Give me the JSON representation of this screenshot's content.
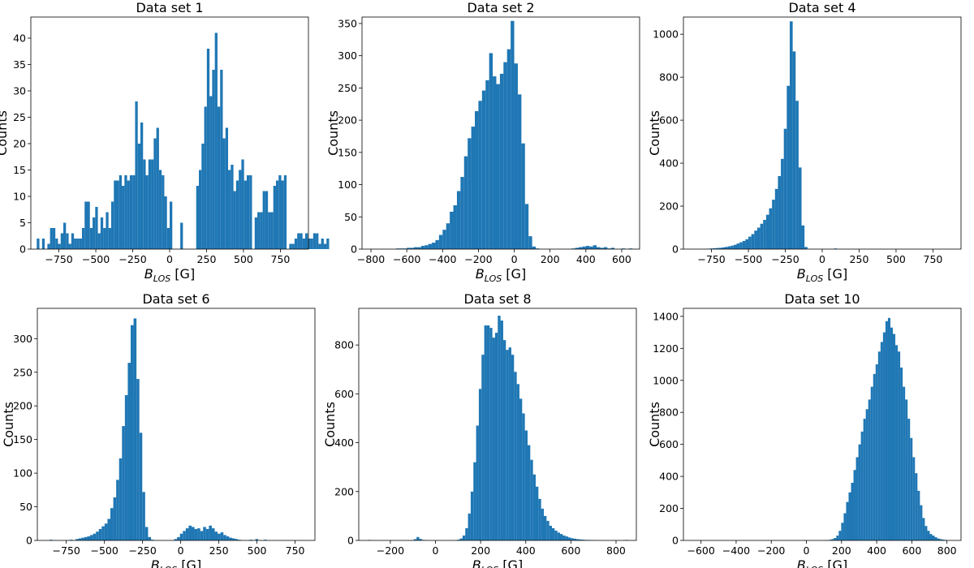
{
  "chart_data": [
    {
      "type": "bar",
      "title": "Data set 1",
      "xlabel_main": "B",
      "xlabel_sub": "LOS",
      "xlabel_unit": " [G]",
      "ylabel": "Counts",
      "xlim": [
        -940,
        940
      ],
      "ylim": [
        0,
        44
      ],
      "xticks": [
        -750,
        -500,
        -250,
        0,
        250,
        500,
        750
      ],
      "yticks": [
        0,
        5,
        10,
        15,
        20,
        25,
        30,
        35,
        40
      ],
      "bin_start": -900,
      "bin_width": 18,
      "counts": [
        2,
        0,
        2,
        0,
        1,
        4,
        4,
        2,
        1,
        3,
        5,
        3,
        1,
        3,
        2,
        2,
        2,
        4,
        9,
        9,
        4,
        6,
        8,
        3,
        6,
        4,
        7,
        4,
        9,
        13,
        13,
        14,
        12,
        14,
        13,
        14,
        14,
        28,
        20,
        24,
        17,
        14,
        17,
        17,
        21,
        23,
        15,
        14,
        10,
        4,
        9,
        0,
        0,
        0,
        5,
        0,
        0,
        0,
        0,
        0,
        12,
        15,
        20,
        27,
        38,
        29,
        34,
        41,
        27,
        34,
        21,
        23,
        15,
        16,
        11,
        13,
        15,
        17,
        13,
        14,
        14,
        0,
        6,
        7,
        7,
        11,
        11,
        7,
        7,
        12,
        13,
        14,
        13,
        14,
        0,
        1,
        1,
        2,
        3,
        3,
        2,
        3,
        2,
        2,
        3,
        3,
        1,
        2,
        1,
        2
      ]
    },
    {
      "type": "bar",
      "title": "Data set 2",
      "xlabel_main": "B",
      "xlabel_sub": "LOS",
      "xlabel_unit": " [G]",
      "ylabel": "Counts",
      "xlim": [
        -850,
        700
      ],
      "ylim": [
        0,
        360
      ],
      "xticks": [
        -800,
        -600,
        -400,
        -200,
        0,
        200,
        400,
        600
      ],
      "yticks": [
        0,
        50,
        100,
        150,
        200,
        250,
        300,
        350
      ],
      "bin_start": -800,
      "bin_width": 20,
      "counts": [
        0,
        0,
        0,
        0,
        0,
        0,
        0,
        1,
        1,
        1,
        2,
        2,
        3,
        3,
        5,
        6,
        8,
        10,
        14,
        22,
        30,
        40,
        58,
        68,
        90,
        112,
        144,
        172,
        190,
        214,
        230,
        246,
        262,
        304,
        268,
        256,
        272,
        290,
        310,
        354,
        288,
        240,
        164,
        70,
        20,
        4,
        1,
        0,
        0,
        0,
        0,
        0,
        0,
        0,
        0,
        0,
        1,
        2,
        3,
        4,
        5,
        4,
        6,
        3,
        2,
        3,
        1,
        2,
        0,
        0,
        1,
        0,
        1
      ]
    },
    {
      "type": "bar",
      "title": "Data set 4",
      "xlabel_main": "B",
      "xlabel_sub": "LOS",
      "xlabel_unit": " [G]",
      "ylabel": "Counts",
      "xlim": [
        -940,
        940
      ],
      "ylim": [
        0,
        1080
      ],
      "xticks": [
        -750,
        -500,
        -250,
        0,
        250,
        500,
        750
      ],
      "yticks": [
        0,
        200,
        400,
        600,
        800,
        1000
      ],
      "bin_start": -800,
      "bin_width": 20,
      "counts": [
        1,
        2,
        3,
        4,
        5,
        6,
        8,
        10,
        13,
        16,
        20,
        26,
        32,
        38,
        46,
        58,
        70,
        86,
        100,
        118,
        136,
        160,
        190,
        230,
        280,
        340,
        420,
        560,
        760,
        1060,
        920,
        690,
        380,
        110,
        10,
        1,
        0,
        0,
        0,
        0,
        0,
        0,
        0,
        0,
        3
      ]
    },
    {
      "type": "bar",
      "title": "Data set 6",
      "xlabel_main": "B",
      "xlabel_sub": "LOS",
      "xlabel_unit": " [G]",
      "ylabel": "Counts",
      "xlim": [
        -940,
        880
      ],
      "ylim": [
        0,
        345
      ],
      "xticks": [
        -750,
        -500,
        -250,
        0,
        250,
        500,
        750
      ],
      "yticks": [
        0,
        50,
        100,
        150,
        200,
        250,
        300
      ],
      "bin_start": -860,
      "bin_width": 19,
      "counts": [
        1,
        0,
        0,
        0,
        0,
        0,
        0,
        1,
        0,
        2,
        3,
        4,
        5,
        6,
        8,
        10,
        13,
        17,
        21,
        25,
        32,
        48,
        64,
        90,
        122,
        170,
        216,
        264,
        320,
        330,
        240,
        160,
        72,
        20,
        5,
        1,
        0,
        0,
        0,
        0,
        0,
        0,
        0,
        2,
        5,
        10,
        14,
        18,
        22,
        20,
        17,
        18,
        14,
        20,
        17,
        22,
        18,
        13,
        10,
        12,
        8,
        6,
        4,
        3,
        2,
        1,
        0,
        0,
        0,
        1,
        0,
        2,
        0,
        0,
        1
      ]
    },
    {
      "type": "bar",
      "title": "Data set 8",
      "xlabel_main": "B",
      "xlabel_sub": "LOS",
      "xlabel_unit": " [G]",
      "ylabel": "Counts",
      "xlim": [
        -340,
        890
      ],
      "ylim": [
        0,
        950
      ],
      "xticks": [
        -200,
        0,
        200,
        400,
        600,
        800
      ],
      "yticks": [
        0,
        200,
        400,
        600,
        800
      ],
      "bin_start": -300,
      "bin_width": 12,
      "counts": [
        2,
        0,
        0,
        0,
        0,
        0,
        0,
        0,
        0,
        0,
        0,
        0,
        0,
        0,
        0,
        0,
        0,
        5,
        14,
        6,
        2,
        1,
        0,
        0,
        0,
        0,
        0,
        0,
        0,
        0,
        0,
        0,
        1,
        3,
        8,
        20,
        50,
        110,
        200,
        320,
        470,
        620,
        760,
        880,
        880,
        870,
        830,
        850,
        920,
        900,
        820,
        780,
        790,
        760,
        690,
        640,
        580,
        520,
        450,
        390,
        330,
        270,
        220,
        170,
        130,
        100,
        80,
        60,
        50,
        40,
        32,
        26,
        20,
        16,
        12,
        9,
        7,
        5,
        4,
        3,
        2,
        2,
        1,
        1,
        1,
        0,
        0,
        0,
        0,
        0,
        0,
        0,
        0,
        0,
        0,
        2
      ]
    },
    {
      "type": "bar",
      "title": "Data set 10",
      "xlabel_main": "B",
      "xlabel_sub": "LOS",
      "xlabel_unit": " [G]",
      "ylabel": "Counts",
      "xlim": [
        -700,
        880
      ],
      "ylim": [
        0,
        1450
      ],
      "xticks": [
        -600,
        -400,
        -200,
        0,
        200,
        400,
        600,
        800
      ],
      "yticks": [
        0,
        200,
        400,
        600,
        800,
        1000,
        1200,
        1400
      ],
      "bin_start": 100,
      "bin_width": 14,
      "counts": [
        1,
        2,
        4,
        8,
        15,
        30,
        60,
        110,
        170,
        240,
        300,
        360,
        440,
        520,
        600,
        680,
        760,
        820,
        880,
        960,
        1040,
        1100,
        1180,
        1240,
        1300,
        1370,
        1390,
        1330,
        1290,
        1220,
        1180,
        1080,
        960,
        880,
        760,
        640,
        520,
        420,
        310,
        220,
        140,
        90,
        60,
        40,
        30,
        20,
        12,
        8,
        5,
        3
      ]
    }
  ]
}
